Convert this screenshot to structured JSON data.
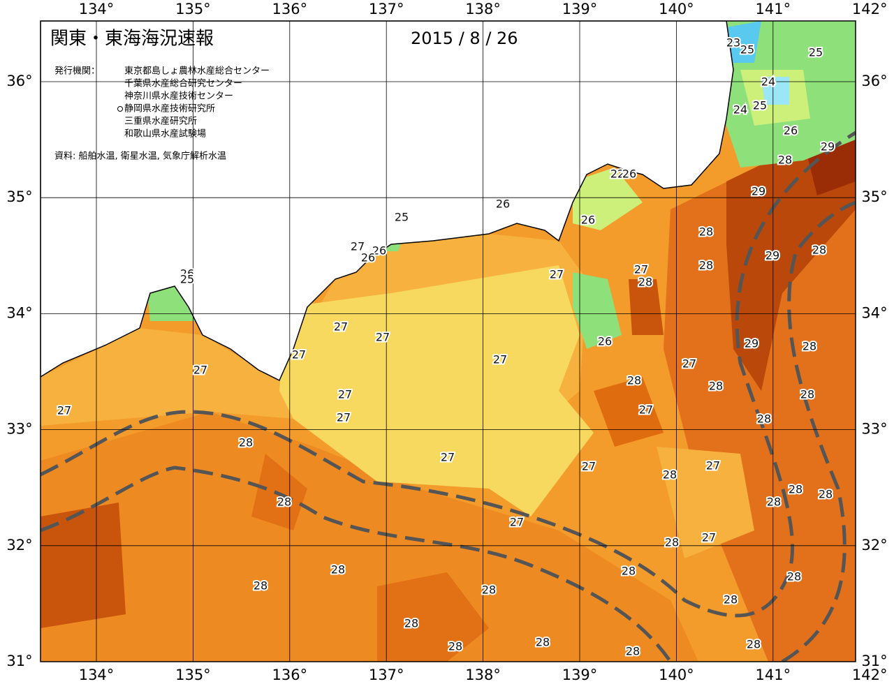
{
  "header": {
    "title": "関東・東海海況速報",
    "date": "2015 / 8 / 26",
    "issuer_label": "発行機関：",
    "issuers": [
      "東京都島しょ農林水産総合センター",
      "千葉県水産総合研究センター",
      "神奈川県水産技術センター",
      "静岡県水産技術研究所",
      "三重県水産研究所",
      "和歌山県水産試験場"
    ],
    "source": "資料: 船舶水温, 衛星水温, 気象庁解析水温"
  },
  "map": {
    "lon_ticks": [
      {
        "value": 134,
        "label": "134°"
      },
      {
        "value": 135,
        "label": "135°"
      },
      {
        "value": 136,
        "label": "136°"
      },
      {
        "value": 137,
        "label": "137°"
      },
      {
        "value": 138,
        "label": "138°"
      },
      {
        "value": 139,
        "label": "139°"
      },
      {
        "value": 140,
        "label": "140°"
      },
      {
        "value": 141,
        "label": "141°"
      },
      {
        "value": 142,
        "label": "142°"
      }
    ],
    "lat_ticks": [
      {
        "value": 36,
        "label": "36°"
      },
      {
        "value": 35,
        "label": "35°"
      },
      {
        "value": 34,
        "label": "34°"
      },
      {
        "value": 33,
        "label": "33°"
      },
      {
        "value": 32,
        "label": "32°"
      },
      {
        "value": 31,
        "label": "31°"
      }
    ],
    "contour_labels": [
      "25",
      "26",
      "26",
      "27",
      "26",
      "26",
      "26",
      "25",
      "27",
      "27",
      "28",
      "27",
      "27",
      "27",
      "27",
      "26",
      "27",
      "27",
      "27",
      "27",
      "28",
      "27",
      "28",
      "27",
      "28",
      "28",
      "29",
      "28",
      "29",
      "28",
      "27",
      "28",
      "28",
      "28",
      "27",
      "28",
      "27",
      "28",
      "27",
      "28",
      "28",
      "28",
      "28",
      "27",
      "28",
      "28",
      "28",
      "28",
      "28",
      "28",
      "28",
      "28",
      "28",
      "28",
      "28",
      "29",
      "28",
      "29",
      "26",
      "25",
      "24",
      "24",
      "25",
      "25",
      "23",
      "22",
      "26"
    ]
  }
}
